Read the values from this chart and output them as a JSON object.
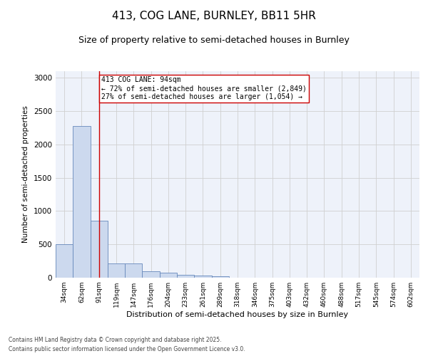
{
  "title": "413, COG LANE, BURNLEY, BB11 5HR",
  "subtitle": "Size of property relative to semi-detached houses in Burnley",
  "xlabel": "Distribution of semi-detached houses by size in Burnley",
  "ylabel": "Number of semi-detached properties",
  "categories": [
    "34sqm",
    "62sqm",
    "91sqm",
    "119sqm",
    "147sqm",
    "176sqm",
    "204sqm",
    "233sqm",
    "261sqm",
    "289sqm",
    "318sqm",
    "346sqm",
    "375sqm",
    "403sqm",
    "432sqm",
    "460sqm",
    "488sqm",
    "517sqm",
    "545sqm",
    "574sqm",
    "602sqm"
  ],
  "values": [
    500,
    2280,
    850,
    210,
    210,
    100,
    70,
    40,
    30,
    20,
    5,
    0,
    0,
    0,
    0,
    0,
    0,
    0,
    0,
    0,
    0
  ],
  "bar_color": "#ccd9ee",
  "bar_edge_color": "#6688bb",
  "grid_color": "#d0d0d0",
  "annotation_label": "413 COG LANE: 94sqm",
  "annotation_smaller": "← 72% of semi-detached houses are smaller (2,849)",
  "annotation_larger": "27% of semi-detached houses are larger (1,054) →",
  "vline_x_index": 2,
  "vline_color": "#cc0000",
  "box_edge_color": "#cc0000",
  "annotation_fontsize": 7,
  "ylim": [
    0,
    3100
  ],
  "yticks": [
    0,
    500,
    1000,
    1500,
    2000,
    2500,
    3000
  ],
  "footer1": "Contains HM Land Registry data © Crown copyright and database right 2025.",
  "footer2": "Contains public sector information licensed under the Open Government Licence v3.0.",
  "background_color": "#eef2fa",
  "title_fontsize": 11,
  "subtitle_fontsize": 9
}
